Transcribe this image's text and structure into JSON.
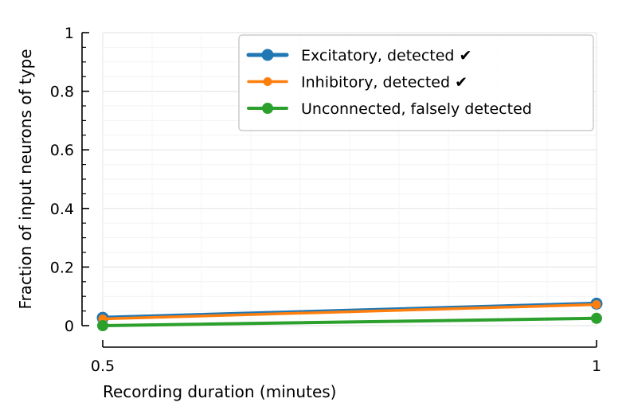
{
  "chart_data": {
    "type": "line",
    "xlabel": "Recording duration (minutes)",
    "ylabel": "Fraction of input neurons of type",
    "x": [
      0.5,
      1
    ],
    "xlim": [
      0.5,
      1
    ],
    "ylim": [
      0,
      1
    ],
    "x_ticks": [
      "0.5",
      "1"
    ],
    "y_ticks": [
      "0",
      "0.2",
      "0.4",
      "0.6",
      "0.8",
      "1"
    ],
    "grid": true,
    "legend_position": "upper-right",
    "series": [
      {
        "name": "Excitatory, detected ✔",
        "values": [
          0.027,
          0.075
        ],
        "color": "#1f77b4"
      },
      {
        "name": "Inhibitory, detected ✔",
        "values": [
          0.023,
          0.072
        ],
        "color": "#ff7f0e"
      },
      {
        "name": "Unconnected, falsely detected",
        "values": [
          0.0,
          0.025
        ],
        "color": "#2ca02c"
      }
    ]
  }
}
